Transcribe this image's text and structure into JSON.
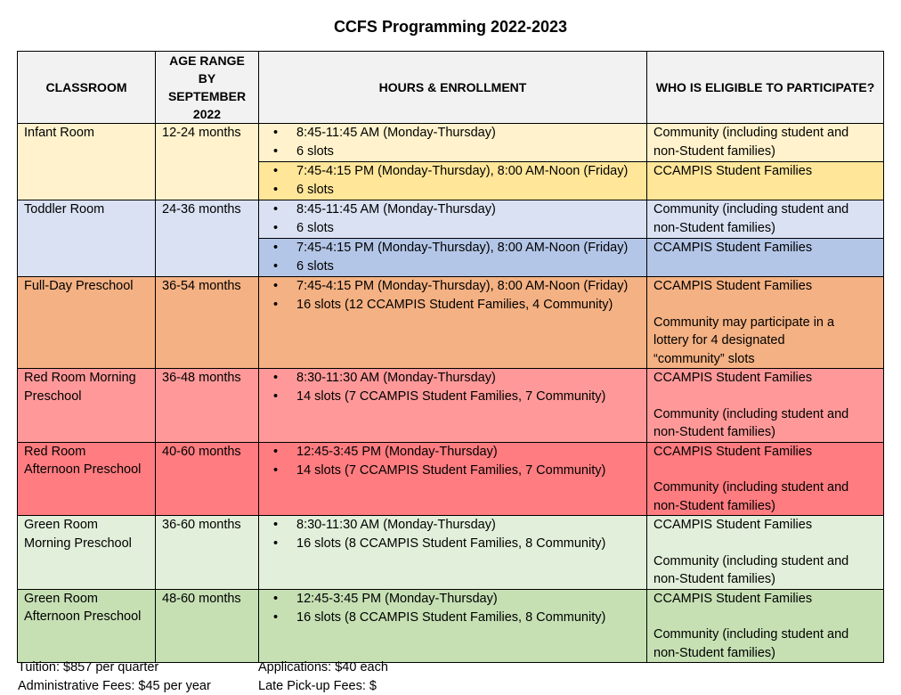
{
  "title": "CCFS Programming 2022-2023",
  "headers": {
    "classroom": "CLASSROOM",
    "age_range": [
      "AGE RANGE",
      "BY",
      "SEPTEMBER",
      "2022"
    ],
    "hours": "HOURS & ENROLLMENT",
    "eligibility": "WHO IS ELIGIBLE TO PARTICIPATE?"
  },
  "colors": {
    "infant_a": "#fff2cc",
    "infant_b": "#ffe699",
    "toddler_a": "#d9e1f2",
    "toddler_b": "#b4c6e7",
    "fullday": "#f4b183",
    "red_morning": "#ff9999",
    "red_afternoon": "#ff7c80",
    "green_morning": "#e2efda",
    "green_afternoon": "#c6e0b4",
    "header": "#f2f2f2"
  },
  "rows": {
    "infant": {
      "classroom": "Infant Room",
      "age": "12-24 months",
      "a": {
        "hours": "8:45-11:45 AM (Monday-Thursday)",
        "slots": "6 slots",
        "elig": [
          "Community (including student and",
          "non-Student families)"
        ]
      },
      "b": {
        "hours": "7:45-4:15 PM (Monday-Thursday), 8:00 AM-Noon (Friday)",
        "slots": "6 slots",
        "elig": "CCAMPIS Student Families"
      }
    },
    "toddler": {
      "classroom": "Toddler Room",
      "age": "24-36 months",
      "a": {
        "hours": "8:45-11:45 AM (Monday-Thursday)",
        "slots": "6 slots",
        "elig": [
          "Community (including student and",
          "non-Student families)"
        ]
      },
      "b": {
        "hours": "7:45-4:15 PM (Monday-Thursday), 8:00 AM-Noon (Friday)",
        "slots": "6 slots",
        "elig": "CCAMPIS Student Families"
      }
    },
    "fullday": {
      "classroom": "Full-Day Preschool",
      "age": "36-54 months",
      "hours": "7:45-4:15 PM (Monday-Thursday), 8:00 AM-Noon (Friday)",
      "slots": "16 slots (12 CCAMPIS Student Families, 4 Community)",
      "elig1": "CCAMPIS Student Families",
      "elig2": [
        "Community may participate in a",
        "lottery for 4 designated",
        "“community” slots"
      ]
    },
    "red_morning": {
      "classroom": [
        "Red Room Morning",
        "Preschool"
      ],
      "age": "36-48 months",
      "hours": "8:30-11:30 AM (Monday-Thursday)",
      "slots": "14 slots (7 CCAMPIS Student Families, 7 Community)",
      "elig1": "CCAMPIS Student Families",
      "elig2": [
        "Community (including student and",
        "non-Student families)"
      ]
    },
    "red_afternoon": {
      "classroom": [
        "Red Room",
        "Afternoon Preschool"
      ],
      "age": "40-60 months",
      "hours": "12:45-3:45 PM (Monday-Thursday)",
      "slots": "14 slots (7 CCAMPIS Student Families, 7 Community)",
      "elig1": "CCAMPIS Student Families",
      "elig2": [
        "Community (including student and",
        "non-Student families)"
      ]
    },
    "green_morning": {
      "classroom": [
        "Green Room",
        "Morning Preschool"
      ],
      "age": "36-60 months",
      "hours": "8:30-11:30 AM (Monday-Thursday)",
      "slots": "16 slots (8 CCAMPIS Student Families, 8 Community)",
      "elig1": "CCAMPIS Student Families",
      "elig2": [
        "Community (including student and",
        "non-Student families)"
      ]
    },
    "green_afternoon": {
      "classroom": [
        "Green Room",
        "Afternoon Preschool"
      ],
      "age": "48-60 months",
      "hours": "12:45-3:45 PM (Monday-Thursday)",
      "slots": "16 slots (8 CCAMPIS Student Families, 8 Community)",
      "elig1": "CCAMPIS Student Families",
      "elig2": [
        "Community (including student and",
        "non-Student families)"
      ]
    }
  },
  "footer": {
    "tuition": "Tuition: $857 per quarter",
    "admin_fees": "Administrative Fees: $45 per year",
    "applications": "Applications: $40 each",
    "late_fees": "Late Pick-up Fees: $"
  }
}
